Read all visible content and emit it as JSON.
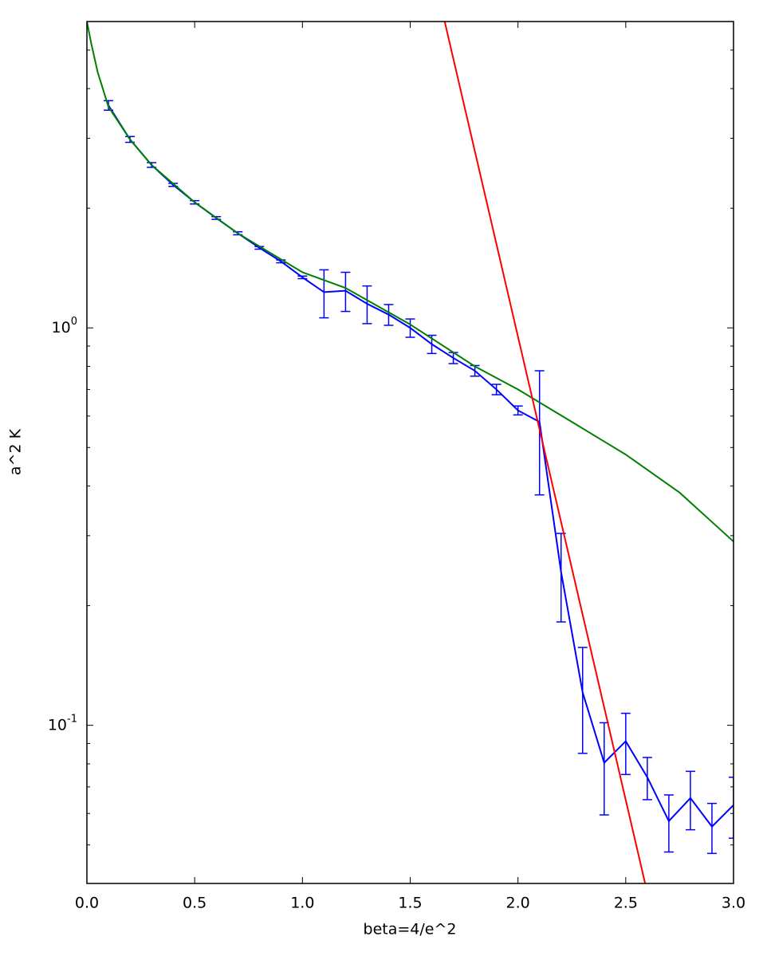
{
  "chart_data": {
    "type": "line",
    "xlabel": "beta=4/e^2",
    "ylabel": "a^2 K",
    "xlim": [
      0,
      3
    ],
    "ylim": [
      0.04,
      5.9
    ],
    "yscale": "log",
    "xticks": [
      {
        "value": 0,
        "label": "0.0"
      },
      0.5,
      {
        "value": 1,
        "label": "1.0"
      },
      1.5,
      {
        "value": 2,
        "label": "2.0"
      },
      2.5,
      {
        "value": 3,
        "label": "3.0"
      }
    ],
    "yticks": [
      {
        "value": 0.1,
        "label": "10",
        "exponent": "-1"
      },
      {
        "value": 1,
        "label": "10",
        "exponent": "0"
      }
    ],
    "yminorticks": [
      0.05,
      0.06,
      0.07,
      0.08,
      0.09,
      0.2,
      0.3,
      0.4,
      0.5,
      0.6,
      0.7,
      0.8,
      0.9,
      2,
      3,
      4,
      5
    ],
    "series": [
      {
        "color": "#0000ff",
        "x": [
          0.1,
          0.2,
          0.3,
          0.4,
          0.5,
          0.6,
          0.7,
          0.8,
          0.9,
          1.0,
          1.1,
          1.2,
          1.3,
          1.4,
          1.5,
          1.6,
          1.7,
          1.8,
          1.9,
          2.0,
          2.1,
          2.2,
          2.3,
          2.4,
          2.5,
          2.6,
          2.7,
          2.8,
          2.9,
          3.0
        ],
        "values": [
          3.63,
          2.98,
          2.57,
          2.29,
          2.07,
          1.89,
          1.73,
          1.59,
          1.47,
          1.34,
          1.23,
          1.24,
          1.15,
          1.08,
          1.0,
          0.91,
          0.84,
          0.78,
          0.7,
          0.62,
          0.58,
          0.243,
          0.121,
          0.0805,
          0.0912,
          0.074,
          0.0574,
          0.0656,
          0.0556,
          0.063
        ],
        "errors": [
          0.1,
          0.05,
          0.035,
          0.02,
          0.02,
          0.015,
          0.015,
          0.012,
          0.012,
          0.01,
          0.17,
          0.14,
          0.125,
          0.065,
          0.053,
          0.048,
          0.027,
          0.024,
          0.021,
          0.016,
          0.2,
          0.061,
          0.036,
          0.021,
          0.016,
          0.009,
          0.0094,
          0.011,
          0.008,
          0.011
        ]
      },
      {
        "color": "#008000",
        "x": [
          0,
          0.02,
          0.05,
          0.1,
          0.2,
          0.3,
          0.5,
          0.7,
          1.0,
          1.2,
          1.5,
          1.8,
          2.0,
          2.25,
          2.5,
          2.75,
          3.0
        ],
        "values": [
          5.9,
          5.2,
          4.4,
          3.6,
          2.98,
          2.57,
          2.07,
          1.73,
          1.38,
          1.26,
          1.02,
          0.8,
          0.7,
          0.58,
          0.48,
          0.385,
          0.29
        ]
      },
      {
        "color": "#ff0000",
        "x": [
          1.66,
          2.59
        ],
        "values": [
          5.9,
          0.04
        ]
      }
    ]
  }
}
